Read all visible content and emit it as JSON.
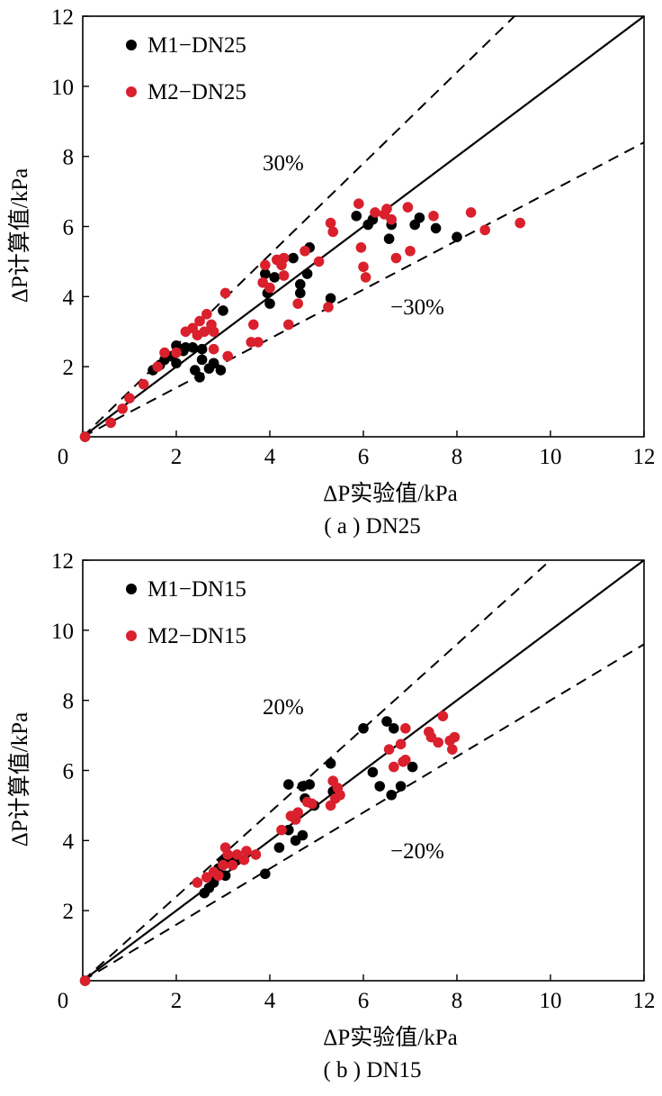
{
  "colors": {
    "M1": "#000000",
    "M2": "#d9202c",
    "axes": "#000000"
  },
  "chart_data": [
    {
      "type": "scatter",
      "caption": "( a ) DN25",
      "xlabel": "ΔP实验值/kPa",
      "ylabel": "ΔP计算值/kPa",
      "xlim": [
        0,
        12
      ],
      "ylim": [
        0,
        12
      ],
      "xticks": [
        "0",
        "2",
        "4",
        "6",
        "8",
        "10",
        "12"
      ],
      "yticks": [
        "2",
        "4",
        "6",
        "8",
        "10",
        "12"
      ],
      "legend_position": "top-left",
      "bands": {
        "upper_label": "30%",
        "lower_label": "−30%",
        "upper_factor": 1.3,
        "lower_factor": 0.7
      },
      "series": [
        {
          "name": "M1−DN25",
          "color": "#000000",
          "points": [
            [
              0.05,
              0.0
            ],
            [
              1.5,
              1.9
            ],
            [
              1.65,
              2.05
            ],
            [
              1.75,
              2.2
            ],
            [
              1.9,
              2.3
            ],
            [
              2.0,
              2.1
            ],
            [
              2.0,
              2.6
            ],
            [
              2.15,
              2.45
            ],
            [
              2.2,
              2.55
            ],
            [
              2.35,
              2.55
            ],
            [
              2.4,
              1.9
            ],
            [
              2.5,
              1.7
            ],
            [
              2.55,
              2.2
            ],
            [
              2.55,
              2.5
            ],
            [
              2.7,
              1.95
            ],
            [
              2.8,
              2.1
            ],
            [
              2.95,
              1.9
            ],
            [
              3.0,
              3.6
            ],
            [
              3.9,
              4.65
            ],
            [
              3.95,
              4.1
            ],
            [
              4.0,
              3.8
            ],
            [
              4.1,
              4.55
            ],
            [
              4.5,
              5.1
            ],
            [
              4.65,
              4.1
            ],
            [
              4.65,
              4.35
            ],
            [
              4.8,
              4.65
            ],
            [
              4.85,
              5.4
            ],
            [
              5.3,
              3.95
            ],
            [
              5.85,
              6.3
            ],
            [
              6.1,
              6.05
            ],
            [
              6.2,
              6.2
            ],
            [
              6.55,
              5.65
            ],
            [
              6.6,
              6.05
            ],
            [
              7.1,
              6.05
            ],
            [
              7.2,
              6.25
            ],
            [
              7.55,
              5.95
            ],
            [
              8.0,
              5.7
            ]
          ]
        },
        {
          "name": "M2−DN25",
          "color": "#d9202c",
          "points": [
            [
              0.05,
              0.0
            ],
            [
              0.6,
              0.4
            ],
            [
              0.85,
              0.8
            ],
            [
              1.0,
              1.1
            ],
            [
              1.3,
              1.5
            ],
            [
              1.6,
              2.0
            ],
            [
              1.75,
              2.4
            ],
            [
              2.0,
              2.4
            ],
            [
              2.2,
              3.0
            ],
            [
              2.35,
              3.1
            ],
            [
              2.45,
              2.9
            ],
            [
              2.5,
              3.3
            ],
            [
              2.6,
              3.0
            ],
            [
              2.65,
              3.5
            ],
            [
              2.75,
              3.2
            ],
            [
              2.8,
              2.5
            ],
            [
              2.8,
              3.0
            ],
            [
              3.05,
              4.1
            ],
            [
              3.1,
              2.3
            ],
            [
              3.6,
              2.7
            ],
            [
              3.65,
              3.2
            ],
            [
              3.75,
              2.7
            ],
            [
              3.85,
              4.4
            ],
            [
              3.9,
              4.9
            ],
            [
              4.0,
              4.25
            ],
            [
              4.15,
              5.05
            ],
            [
              4.25,
              4.9
            ],
            [
              4.3,
              4.6
            ],
            [
              4.3,
              5.1
            ],
            [
              4.4,
              3.2
            ],
            [
              4.6,
              3.8
            ],
            [
              4.75,
              5.3
            ],
            [
              5.05,
              5.0
            ],
            [
              5.25,
              3.7
            ],
            [
              5.3,
              6.1
            ],
            [
              5.35,
              5.85
            ],
            [
              5.9,
              6.65
            ],
            [
              5.95,
              5.4
            ],
            [
              6.0,
              4.85
            ],
            [
              6.05,
              4.55
            ],
            [
              6.25,
              6.4
            ],
            [
              6.45,
              6.35
            ],
            [
              6.5,
              6.5
            ],
            [
              6.6,
              6.2
            ],
            [
              6.7,
              5.1
            ],
            [
              6.95,
              6.55
            ],
            [
              7.0,
              5.3
            ],
            [
              7.5,
              6.3
            ],
            [
              8.3,
              6.4
            ],
            [
              8.6,
              5.9
            ],
            [
              9.35,
              6.1
            ]
          ]
        }
      ]
    },
    {
      "type": "scatter",
      "caption": "( b ) DN15",
      "xlabel": "ΔP实验值/kPa",
      "ylabel": "ΔP计算值/kPa",
      "xlim": [
        0,
        12
      ],
      "ylim": [
        0,
        12
      ],
      "xticks": [
        "0",
        "2",
        "4",
        "6",
        "8",
        "10",
        "12"
      ],
      "yticks": [
        "2",
        "4",
        "6",
        "8",
        "10",
        "12"
      ],
      "legend_position": "top-left",
      "bands": {
        "upper_label": "20%",
        "lower_label": "−20%",
        "upper_factor": 1.2,
        "lower_factor": 0.8
      },
      "series": [
        {
          "name": "M1−DN15",
          "color": "#000000",
          "points": [
            [
              0.05,
              0.0
            ],
            [
              2.6,
              2.5
            ],
            [
              2.7,
              2.65
            ],
            [
              2.8,
              2.8
            ],
            [
              2.85,
              3.0
            ],
            [
              2.9,
              3.2
            ],
            [
              3.0,
              3.4
            ],
            [
              3.0,
              3.3
            ],
            [
              3.05,
              3.0
            ],
            [
              3.1,
              3.5
            ],
            [
              3.2,
              3.3
            ],
            [
              3.3,
              3.45
            ],
            [
              3.9,
              3.05
            ],
            [
              4.2,
              3.8
            ],
            [
              4.4,
              5.6
            ],
            [
              4.4,
              4.3
            ],
            [
              4.55,
              4.0
            ],
            [
              4.7,
              4.15
            ],
            [
              4.7,
              5.55
            ],
            [
              4.75,
              5.2
            ],
            [
              4.85,
              5.6
            ],
            [
              4.95,
              5.0
            ],
            [
              5.3,
              6.2
            ],
            [
              5.35,
              5.4
            ],
            [
              6.0,
              7.2
            ],
            [
              6.2,
              5.95
            ],
            [
              6.35,
              5.55
            ],
            [
              6.5,
              7.4
            ],
            [
              6.6,
              5.3
            ],
            [
              6.65,
              7.2
            ],
            [
              6.8,
              5.55
            ],
            [
              7.05,
              6.1
            ]
          ]
        },
        {
          "name": "M2−DN15",
          "color": "#d9202c",
          "points": [
            [
              0.05,
              0.0
            ],
            [
              2.45,
              2.8
            ],
            [
              2.65,
              2.95
            ],
            [
              2.8,
              3.1
            ],
            [
              2.9,
              3.0
            ],
            [
              3.0,
              3.3
            ],
            [
              3.05,
              3.8
            ],
            [
              3.1,
              3.6
            ],
            [
              3.2,
              3.3
            ],
            [
              3.3,
              3.6
            ],
            [
              3.45,
              3.45
            ],
            [
              3.5,
              3.7
            ],
            [
              3.7,
              3.6
            ],
            [
              4.25,
              4.3
            ],
            [
              4.45,
              4.7
            ],
            [
              4.55,
              4.6
            ],
            [
              4.6,
              4.8
            ],
            [
              4.8,
              5.1
            ],
            [
              4.9,
              5.05
            ],
            [
              5.3,
              5.0
            ],
            [
              5.35,
              5.7
            ],
            [
              5.4,
              5.2
            ],
            [
              5.45,
              5.5
            ],
            [
              5.5,
              5.3
            ],
            [
              6.55,
              6.6
            ],
            [
              6.65,
              6.1
            ],
            [
              6.8,
              6.75
            ],
            [
              6.85,
              6.25
            ],
            [
              6.9,
              6.3
            ],
            [
              6.9,
              7.2
            ],
            [
              7.4,
              7.1
            ],
            [
              7.45,
              6.95
            ],
            [
              7.6,
              6.8
            ],
            [
              7.7,
              7.55
            ],
            [
              7.85,
              6.85
            ],
            [
              7.9,
              6.6
            ],
            [
              7.95,
              6.95
            ]
          ]
        }
      ]
    }
  ]
}
